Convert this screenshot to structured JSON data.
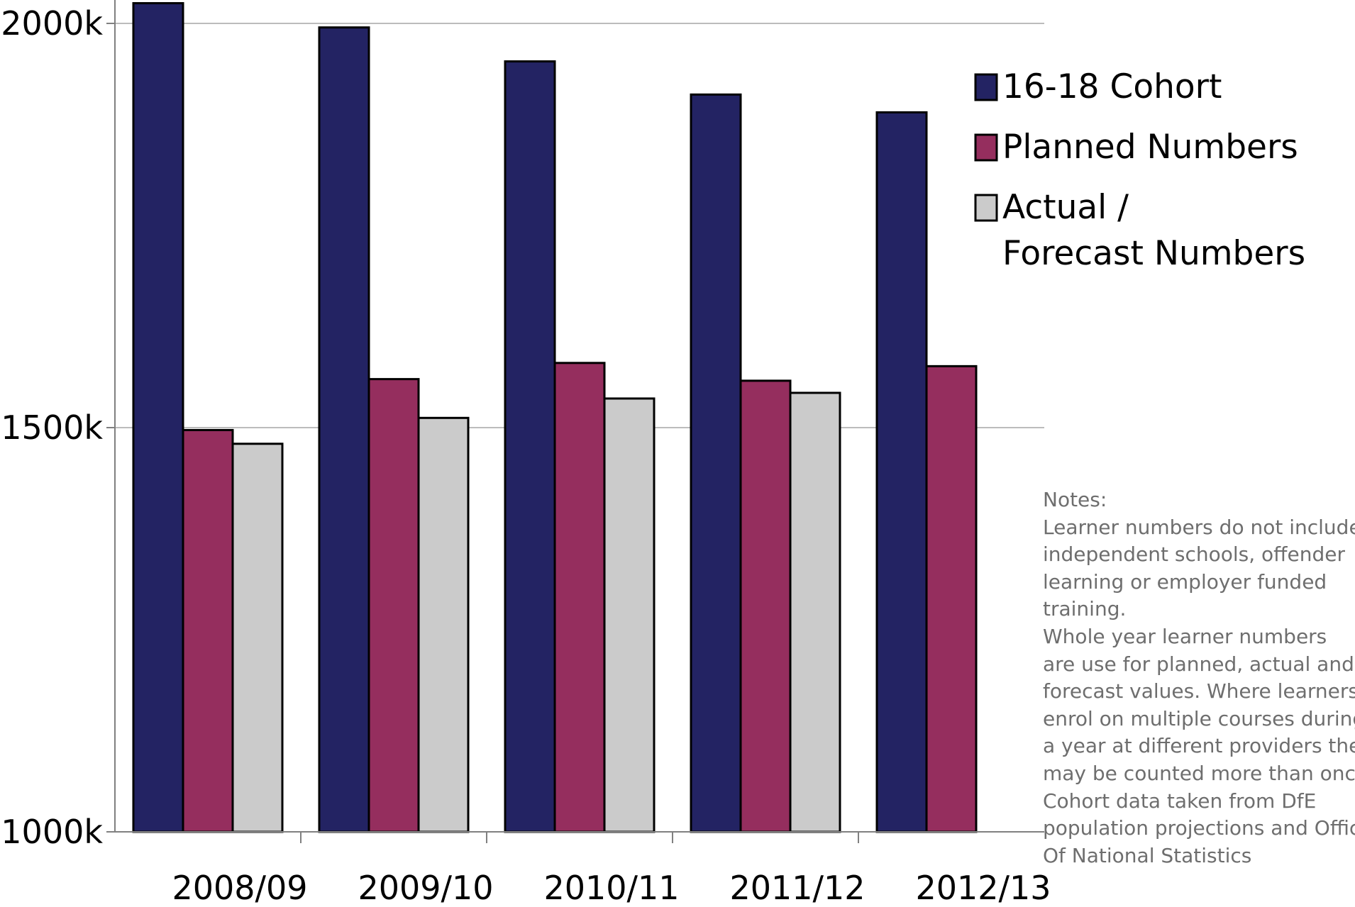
{
  "chart_data": {
    "type": "bar",
    "title": "",
    "xlabel": "",
    "ylabel": "",
    "categories": [
      "2008/09",
      "2009/10",
      "2010/11",
      "2011/12",
      "2012/13"
    ],
    "series": [
      {
        "name": "16-18 Cohort",
        "color": "#232363",
        "values": [
          2025,
          1995,
          1953,
          1912,
          1890
        ]
      },
      {
        "name": "Planned Numbers",
        "color": "#952e5e",
        "values": [
          1497,
          1560,
          1580,
          1558,
          1576
        ]
      },
      {
        "name": "Actual / Forecast Numbers",
        "color": "#cbcbcb",
        "values": [
          1480,
          1512,
          1536,
          1543,
          null
        ]
      }
    ],
    "ylim": [
      1000,
      2000
    ],
    "yticks": [
      1000,
      1500,
      2000
    ],
    "ytick_labels": [
      "1000k",
      "1500k",
      "2000k"
    ],
    "grid": true,
    "legend_position": "right",
    "legend_labels": [
      {
        "series": 0,
        "lines": [
          "16-18 Cohort"
        ]
      },
      {
        "series": 1,
        "lines": [
          "Planned Numbers"
        ]
      },
      {
        "series": 2,
        "lines": [
          "Actual /",
          "Forecast Numbers"
        ]
      }
    ]
  },
  "notes": {
    "lines": [
      "Notes:",
      "Learner numbers do not include",
      "independent schools, offender",
      "learning or employer funded",
      "training.",
      "Whole year learner numbers",
      "are use for planned, actual and",
      "forecast values. Where learners",
      "enrol on multiple courses during",
      "a year at different providers they",
      "may be counted more than once.",
      "Cohort data taken from DfE",
      "population projections and Office",
      "Of National Statistics"
    ]
  }
}
